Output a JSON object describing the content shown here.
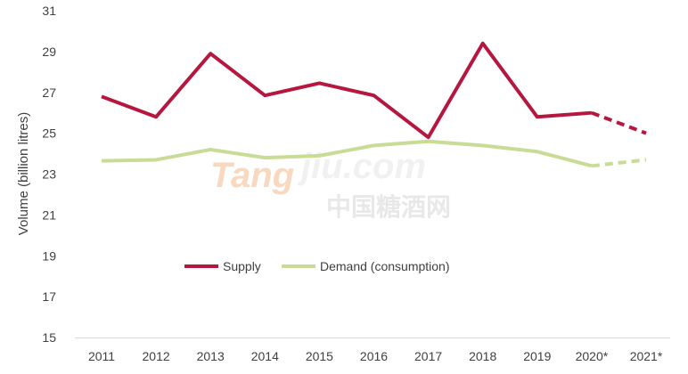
{
  "chart_data": {
    "type": "line",
    "categories": [
      "2011",
      "2012",
      "2013",
      "2014",
      "2015",
      "2016",
      "2017",
      "2018",
      "2019",
      "2020*",
      "2021*"
    ],
    "series": [
      {
        "name": "Supply",
        "color": "#b5173f",
        "values": [
          26.8,
          25.8,
          28.9,
          26.85,
          27.45,
          26.85,
          24.8,
          29.4,
          25.8,
          26.0,
          25.0
        ],
        "forecast_from_index": 9
      },
      {
        "name": "Demand (consumption)",
        "color": "#c8dc96",
        "values": [
          23.65,
          23.7,
          24.2,
          23.8,
          23.9,
          24.4,
          24.6,
          24.4,
          24.1,
          23.4,
          23.7
        ],
        "forecast_from_index": 9
      }
    ],
    "ylabel": "Volume (billion litres)",
    "ylim": [
      15,
      31
    ],
    "yticks": [
      15,
      17,
      19,
      21,
      23,
      25,
      27,
      29,
      31
    ],
    "grid": false,
    "legend_position": "center"
  },
  "watermark": {
    "logo_text": "Tangjiu.com",
    "cjk_text": "中国糖酒网"
  }
}
